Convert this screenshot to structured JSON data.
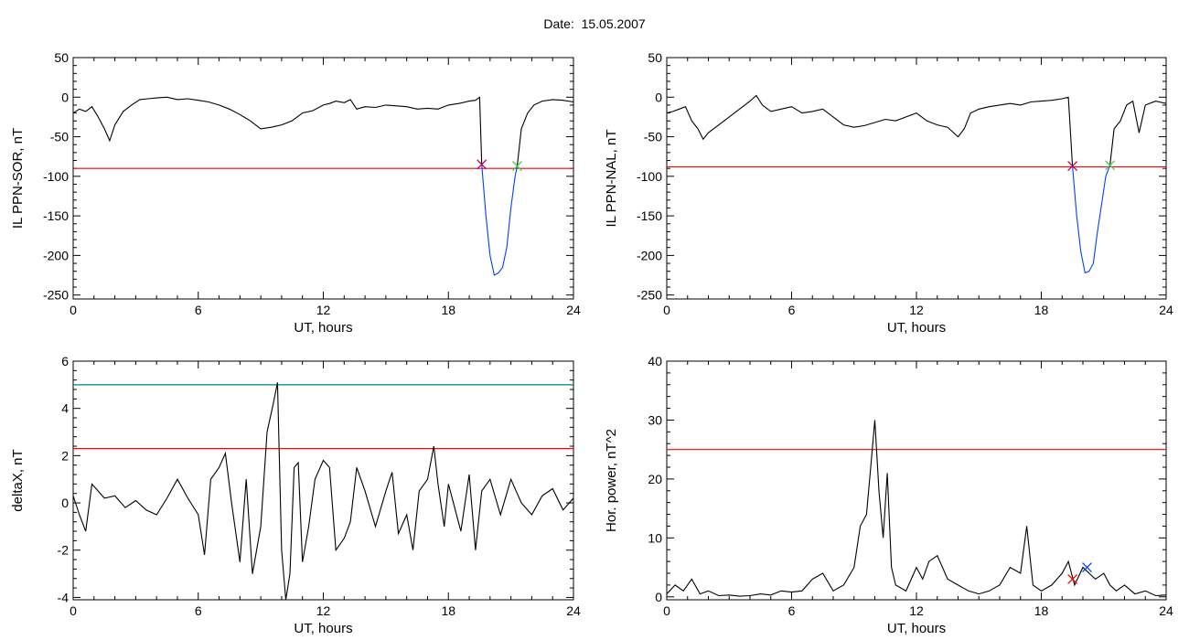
{
  "header": {
    "date_label": "Date:",
    "date_value": "15.05.2007"
  },
  "chart_data": [
    {
      "type": "line",
      "ylabel": "IL PPN-SOR, nT",
      "xlabel": "UT, hours",
      "xlim": [
        0,
        24
      ],
      "ylim": [
        -255,
        50
      ],
      "xticks": [
        0,
        6,
        12,
        18,
        24
      ],
      "yticks": [
        50,
        0,
        -50,
        -100,
        -150,
        -200,
        -250
      ],
      "threshold_lines": [
        {
          "y": -90,
          "color": "#ff0000"
        }
      ],
      "markers": [
        {
          "x": 19.6,
          "y": -85,
          "symbol": "x",
          "color": "#c00050"
        },
        {
          "x": 21.3,
          "y": -87,
          "symbol": "x",
          "color": "#44cc44"
        }
      ],
      "series": [
        {
          "color": "#000000",
          "x": [
            0,
            0.3,
            0.6,
            0.9,
            1.2,
            1.5,
            1.75,
            2.0,
            2.4,
            2.8,
            3.2,
            3.6,
            4.0,
            4.5,
            5.0,
            5.5,
            6.0,
            6.5,
            7.0,
            7.5,
            8.0,
            8.5,
            9.0,
            9.5,
            10.0,
            10.5,
            11.0,
            11.5,
            12.0,
            12.3,
            12.6,
            13.0,
            13.3,
            13.6,
            14.0,
            14.5,
            15.0,
            15.5,
            16.0,
            16.5,
            17.0,
            17.5,
            18.0,
            18.5,
            19.0,
            19.3,
            19.5,
            19.6
          ],
          "y": [
            -20,
            -15,
            -18,
            -12,
            -25,
            -40,
            -55,
            -35,
            -18,
            -10,
            -3,
            -2,
            -1,
            0,
            -3,
            -2,
            -4,
            -6,
            -10,
            -15,
            -22,
            -30,
            -40,
            -38,
            -35,
            -30,
            -20,
            -17,
            -10,
            -8,
            -5,
            -7,
            -3,
            -15,
            -12,
            -13,
            -10,
            -11,
            -12,
            -15,
            -14,
            -15,
            -10,
            -8,
            -5,
            -4,
            0,
            -85
          ]
        },
        {
          "color": "#0040ff",
          "x": [
            19.6,
            19.8,
            20.0,
            20.2,
            20.4,
            20.6,
            20.8,
            21.0,
            21.2,
            21.3
          ],
          "y": [
            -85,
            -150,
            -200,
            -225,
            -222,
            -215,
            -190,
            -140,
            -100,
            -87
          ]
        },
        {
          "color": "#000000",
          "x": [
            21.3,
            21.5,
            21.8,
            22.1,
            22.5,
            23.0,
            23.5,
            24.0
          ],
          "y": [
            -87,
            -40,
            -20,
            -10,
            -5,
            -3,
            -4,
            -6
          ]
        }
      ]
    },
    {
      "type": "line",
      "ylabel": "IL PPN-NAL, nT",
      "xlabel": "UT, hours",
      "xlim": [
        0,
        24
      ],
      "ylim": [
        -255,
        50
      ],
      "xticks": [
        0,
        6,
        12,
        18,
        24
      ],
      "yticks": [
        50,
        0,
        -50,
        -100,
        -150,
        -200,
        -250
      ],
      "threshold_lines": [
        {
          "y": -88,
          "color": "#ff0000"
        }
      ],
      "markers": [
        {
          "x": 19.5,
          "y": -87,
          "symbol": "x",
          "color": "#c00050"
        },
        {
          "x": 21.3,
          "y": -86,
          "symbol": "x",
          "color": "#44cc44"
        }
      ],
      "series": [
        {
          "color": "#000000",
          "x": [
            0,
            0.3,
            0.6,
            0.9,
            1.2,
            1.5,
            1.75,
            2.0,
            2.5,
            3.0,
            3.5,
            4.0,
            4.3,
            4.6,
            5.0,
            5.5,
            6.0,
            6.5,
            7.0,
            7.5,
            8.0,
            8.5,
            9.0,
            9.5,
            10.0,
            10.5,
            11.0,
            11.5,
            12.0,
            12.5,
            13.0,
            13.5,
            14.0,
            14.3,
            14.6,
            15.0,
            15.5,
            16.0,
            16.5,
            17.0,
            17.5,
            18.0,
            18.5,
            19.0,
            19.3,
            19.5
          ],
          "y": [
            -20,
            -18,
            -15,
            -12,
            -30,
            -40,
            -53,
            -45,
            -35,
            -25,
            -15,
            -5,
            2,
            -10,
            -18,
            -15,
            -12,
            -20,
            -18,
            -15,
            -25,
            -35,
            -38,
            -36,
            -32,
            -28,
            -30,
            -25,
            -20,
            -30,
            -35,
            -38,
            -50,
            -40,
            -20,
            -15,
            -12,
            -10,
            -8,
            -10,
            -6,
            -5,
            -4,
            -2,
            0,
            -87
          ]
        },
        {
          "color": "#0040ff",
          "x": [
            19.5,
            19.7,
            19.9,
            20.1,
            20.3,
            20.5,
            20.7,
            20.9,
            21.1,
            21.3
          ],
          "y": [
            -87,
            -150,
            -195,
            -222,
            -220,
            -210,
            -170,
            -135,
            -100,
            -86
          ]
        },
        {
          "color": "#000000",
          "x": [
            21.3,
            21.5,
            21.8,
            22.1,
            22.4,
            22.7,
            23.0,
            23.5,
            24.0
          ],
          "y": [
            -86,
            -40,
            -30,
            -10,
            -5,
            -45,
            -10,
            -5,
            -8
          ]
        }
      ]
    },
    {
      "type": "line",
      "ylabel": "deltaX, nT",
      "xlabel": "UT, hours",
      "xlim": [
        0,
        24
      ],
      "ylim": [
        -4.1,
        6
      ],
      "xticks": [
        0,
        6,
        12,
        18,
        24
      ],
      "yticks": [
        6,
        4,
        2,
        0,
        -2,
        -4
      ],
      "threshold_lines": [
        {
          "y": 5.0,
          "color": "#008080"
        },
        {
          "y": 2.3,
          "color": "#ff0000"
        }
      ],
      "series": [
        {
          "color": "#000000",
          "x": [
            0,
            0.3,
            0.6,
            0.9,
            1.2,
            1.5,
            2.0,
            2.5,
            3.0,
            3.5,
            4.0,
            4.5,
            5.0,
            5.5,
            6.0,
            6.3,
            6.6,
            7.0,
            7.3,
            7.6,
            8.0,
            8.3,
            8.6,
            9.0,
            9.3,
            9.6,
            9.8,
            10.0,
            10.2,
            10.4,
            10.6,
            10.8,
            11.0,
            11.3,
            11.6,
            12.0,
            12.3,
            12.6,
            13.0,
            13.3,
            13.6,
            14.0,
            14.5,
            15.0,
            15.3,
            15.6,
            16.0,
            16.3,
            16.6,
            17.0,
            17.3,
            17.5,
            17.8,
            18.0,
            18.3,
            18.6,
            19.0,
            19.3,
            19.6,
            20.0,
            20.5,
            21.0,
            21.5,
            22.0,
            22.5,
            23.0,
            23.5,
            24.0
          ],
          "y": [
            0.3,
            -0.5,
            -1.2,
            0.8,
            0.5,
            0.2,
            0.3,
            -0.2,
            0.1,
            -0.3,
            -0.5,
            0.2,
            1.0,
            0.2,
            -0.5,
            -2.2,
            1.0,
            1.5,
            2.1,
            0.0,
            -2.5,
            1.0,
            -3.0,
            -1.0,
            3.0,
            4.2,
            5.1,
            -2.0,
            -4.1,
            -3.0,
            1.5,
            1.7,
            -2.5,
            -1.0,
            1.0,
            1.8,
            1.5,
            -2.0,
            -1.5,
            -0.8,
            1.5,
            0.5,
            -1.0,
            0.5,
            1.3,
            -1.3,
            -0.5,
            -2.0,
            0.5,
            1.0,
            2.4,
            0.8,
            -1.0,
            0.8,
            -0.2,
            -1.2,
            1.2,
            -2.0,
            0.5,
            1.0,
            -0.5,
            1.0,
            0.0,
            -0.5,
            0.3,
            0.6,
            -0.3,
            0.2
          ]
        }
      ]
    },
    {
      "type": "line",
      "ylabel": "Hor. power, nT^2",
      "xlabel": "UT, hours",
      "xlim": [
        0,
        24
      ],
      "ylim": [
        -0.5,
        40
      ],
      "xticks": [
        0,
        6,
        12,
        18,
        24
      ],
      "yticks": [
        40,
        30,
        20,
        10,
        0
      ],
      "threshold_lines": [
        {
          "y": 25,
          "color": "#ff0000"
        }
      ],
      "markers": [
        {
          "x": 19.5,
          "y": 3,
          "symbol": "x",
          "color": "#ff0000"
        },
        {
          "x": 20.2,
          "y": 5,
          "symbol": "x",
          "color": "#0040ff"
        }
      ],
      "series": [
        {
          "color": "#000000",
          "x": [
            0,
            0.4,
            0.8,
            1.2,
            1.6,
            2.0,
            2.5,
            3.0,
            3.5,
            4.0,
            4.5,
            5.0,
            5.5,
            6.0,
            6.5,
            7.0,
            7.5,
            8.0,
            8.5,
            9.0,
            9.3,
            9.6,
            9.8,
            10.0,
            10.2,
            10.4,
            10.6,
            10.8,
            11.0,
            11.5,
            12.0,
            12.3,
            12.6,
            13.0,
            13.5,
            14.0,
            14.5,
            15.0,
            15.5,
            16.0,
            16.5,
            17.0,
            17.3,
            17.6,
            18.0,
            18.5,
            19.0,
            19.3,
            19.6,
            20.0,
            20.3,
            20.6,
            21.0,
            21.3,
            21.6,
            22.0,
            22.5,
            23.0,
            23.5,
            24.0
          ],
          "y": [
            0.5,
            2,
            1,
            3,
            0.5,
            1,
            0.2,
            0.3,
            0.1,
            0.2,
            0.5,
            0.3,
            1,
            0.8,
            1,
            3,
            4,
            1,
            2,
            5,
            12,
            14,
            22,
            30,
            18,
            10,
            21,
            5,
            2,
            1,
            5,
            3,
            6,
            7,
            3,
            2,
            1,
            0.5,
            1,
            2,
            5,
            4,
            12,
            2,
            1,
            2,
            4,
            6,
            2,
            5,
            4,
            3,
            4,
            2,
            1,
            2,
            0.5,
            1,
            0.2,
            0.3
          ]
        }
      ]
    }
  ]
}
